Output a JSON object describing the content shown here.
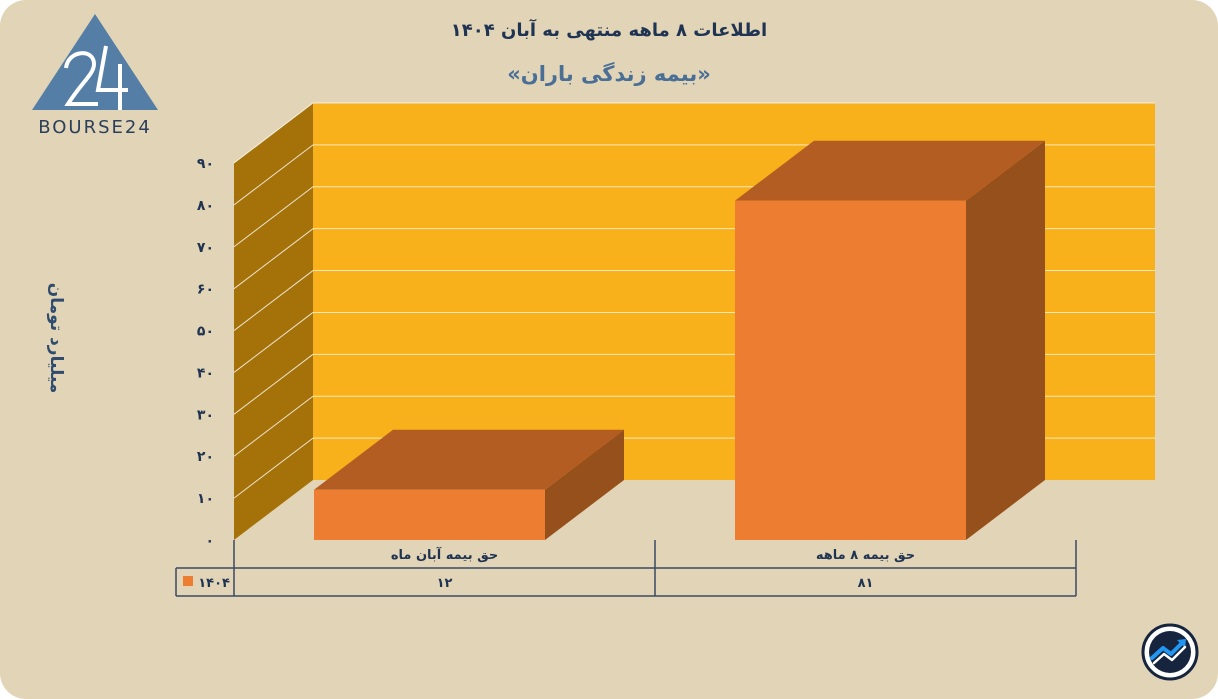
{
  "header": {
    "title": "اطلاعات ۸ ماهه منتهی به آبان ۱۴۰۴",
    "subtitle": "«بیمه زندگی باران»"
  },
  "logo": {
    "text": "BOURSE24",
    "mark": "24"
  },
  "chart_data": {
    "type": "bar",
    "ylabel": "میلیارد تومان",
    "ylim": [
      0,
      90
    ],
    "yticks": [
      0,
      10,
      20,
      30,
      40,
      50,
      60,
      70,
      80,
      90
    ],
    "ytick_labels": [
      "۰",
      "۱۰",
      "۲۰",
      "۳۰",
      "۴۰",
      "۵۰",
      "۶۰",
      "۷۰",
      "۸۰",
      "۹۰"
    ],
    "categories": [
      "حق بیمه آبان ماه",
      "حق بیمه ۸ ماهه"
    ],
    "series": [
      {
        "name": "۱۴۰۴",
        "values": [
          12,
          81
        ],
        "value_labels": [
          "۱۲",
          "۸۱"
        ]
      }
    ],
    "grid": true,
    "style": "3d",
    "data_table": true
  },
  "colors": {
    "background": "#e2d4b6",
    "back_wall": "#f8b11a",
    "side_wall": "#a47208",
    "bar_front": "#ed7d31",
    "bar_top": "#b45d22",
    "bar_side": "#96501c",
    "text_dark": "#1f3352"
  },
  "icons": {
    "badge": "trend-arrow-icon"
  }
}
